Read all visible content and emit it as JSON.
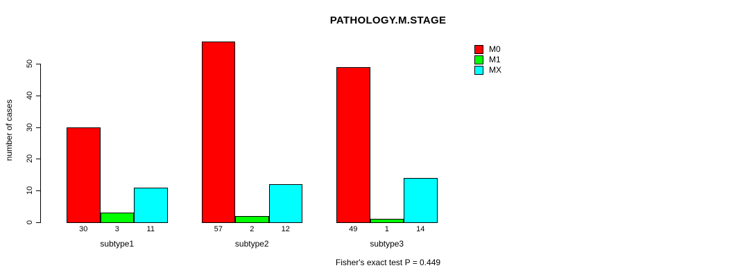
{
  "chart_data": {
    "type": "bar",
    "title": "PATHOLOGY.M.STAGE",
    "xlabel": "",
    "ylabel": "number of cases",
    "categories": [
      "subtype1",
      "subtype2",
      "subtype3"
    ],
    "series": [
      {
        "name": "M0",
        "color": "#FF0000",
        "values": [
          30,
          57,
          49
        ]
      },
      {
        "name": "M1",
        "color": "#00FF00",
        "values": [
          3,
          2,
          1
        ]
      },
      {
        "name": "MX",
        "color": "#00FFFF",
        "values": [
          11,
          12,
          14
        ]
      }
    ],
    "values_shown_below_bars": true,
    "ylim": [
      0,
      50
    ],
    "yticks": [
      0,
      10,
      20,
      30,
      40,
      50
    ],
    "grid": false,
    "legend_position": "top-right",
    "legend_entries": [
      "M0",
      "M1",
      "MX"
    ],
    "annotation": "Fisher's exact test P = 0.449",
    "background_color": "#FFFFFF",
    "bar_border_color": "#000000",
    "text_color": "#000000"
  }
}
